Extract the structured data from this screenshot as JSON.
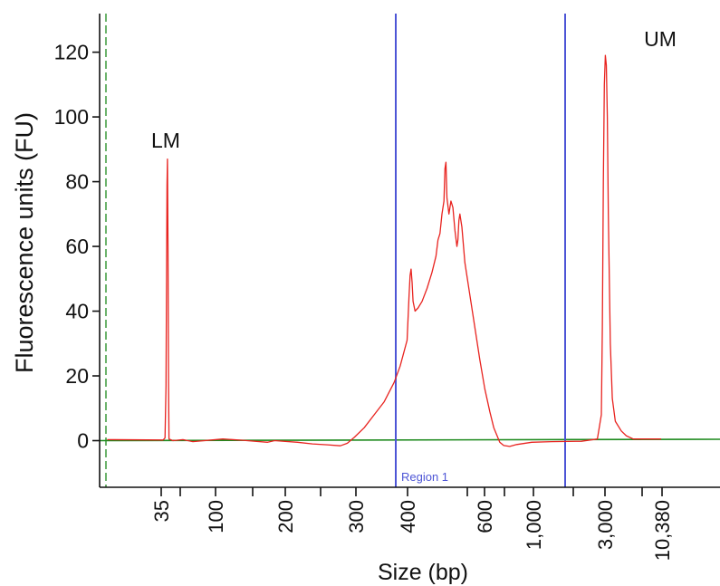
{
  "chart_data": {
    "type": "line",
    "ylabel": "Fluorescence units (FU)",
    "xlabel": "Size (bp)",
    "ylim": [
      -15,
      130
    ],
    "y_ticks": [
      0,
      20,
      40,
      60,
      80,
      100,
      120
    ],
    "x_tick_labels": [
      "35",
      "100",
      "200",
      "300",
      "400",
      "600",
      "1,000",
      "3,000",
      "10,380"
    ],
    "grid": false,
    "annotations": [
      {
        "label": "LM",
        "x": "35",
        "y": 87
      },
      {
        "label": "UM",
        "x": "10,380",
        "y": 119
      }
    ],
    "region": {
      "label": "Region 1",
      "start_bp": 380,
      "end_bp": 1500
    },
    "colors": {
      "trace": "#e8231f",
      "baseline": "#1e8a1e",
      "region": "#4d55d6",
      "axis": "#111111"
    },
    "series": [
      {
        "values_note": "",
        "points": [
          [
            4,
            0.3
          ],
          [
            60,
            0.2
          ],
          [
            62,
            0.8
          ],
          [
            63,
            17
          ],
          [
            64,
            79
          ],
          [
            64.5,
            87
          ],
          [
            65,
            60
          ],
          [
            65.5,
            18
          ],
          [
            66,
            0.5
          ],
          [
            70,
            0
          ],
          [
            80,
            0.3
          ],
          [
            90,
            -0.3
          ],
          [
            120,
            0.5
          ],
          [
            140,
            0.1
          ],
          [
            165,
            -0.5
          ],
          [
            172,
            0
          ],
          [
            195,
            -0.5
          ],
          [
            210,
            -1
          ],
          [
            225,
            -1.3
          ],
          [
            238,
            -1.6
          ],
          [
            245,
            -0.8
          ],
          [
            252,
            1
          ],
          [
            262,
            4
          ],
          [
            272,
            8
          ],
          [
            282,
            12
          ],
          [
            292,
            18
          ],
          [
            298,
            23
          ],
          [
            305,
            31
          ],
          [
            307,
            45
          ],
          [
            308,
            51
          ],
          [
            309,
            53
          ],
          [
            310,
            49
          ],
          [
            311,
            43
          ],
          [
            313,
            40
          ],
          [
            316,
            41
          ],
          [
            320,
            43
          ],
          [
            325,
            47
          ],
          [
            330,
            52
          ],
          [
            334,
            57
          ],
          [
            336,
            62
          ],
          [
            338,
            64
          ],
          [
            340,
            70
          ],
          [
            342,
            74
          ],
          [
            343,
            84
          ],
          [
            344,
            86
          ],
          [
            345,
            75
          ],
          [
            347,
            70
          ],
          [
            349,
            74
          ],
          [
            351,
            72
          ],
          [
            353,
            65
          ],
          [
            355,
            60
          ],
          [
            356,
            62
          ],
          [
            357,
            68
          ],
          [
            358,
            70
          ],
          [
            360,
            66
          ],
          [
            363,
            55
          ],
          [
            368,
            45
          ],
          [
            373,
            35
          ],
          [
            378,
            25
          ],
          [
            383,
            16
          ],
          [
            388,
            9
          ],
          [
            392,
            4
          ],
          [
            396,
            1
          ],
          [
            398,
            -0.5
          ],
          [
            402,
            -1.5
          ],
          [
            408,
            -1.8
          ],
          [
            415,
            -1.2
          ],
          [
            430,
            -0.5
          ],
          [
            450,
            -0.3
          ],
          [
            480,
            -0.2
          ],
          [
            496,
            0.5
          ],
          [
            500,
            8
          ],
          [
            501,
            35
          ],
          [
            502,
            80
          ],
          [
            503,
            110
          ],
          [
            504,
            119
          ],
          [
            505,
            116
          ],
          [
            506,
            100
          ],
          [
            507,
            70
          ],
          [
            509,
            30
          ],
          [
            511,
            13
          ],
          [
            514,
            6
          ],
          [
            520,
            3
          ],
          [
            525,
            1.5
          ],
          [
            532,
            0.5
          ],
          [
            560,
            0.5
          ]
        ]
      }
    ]
  }
}
